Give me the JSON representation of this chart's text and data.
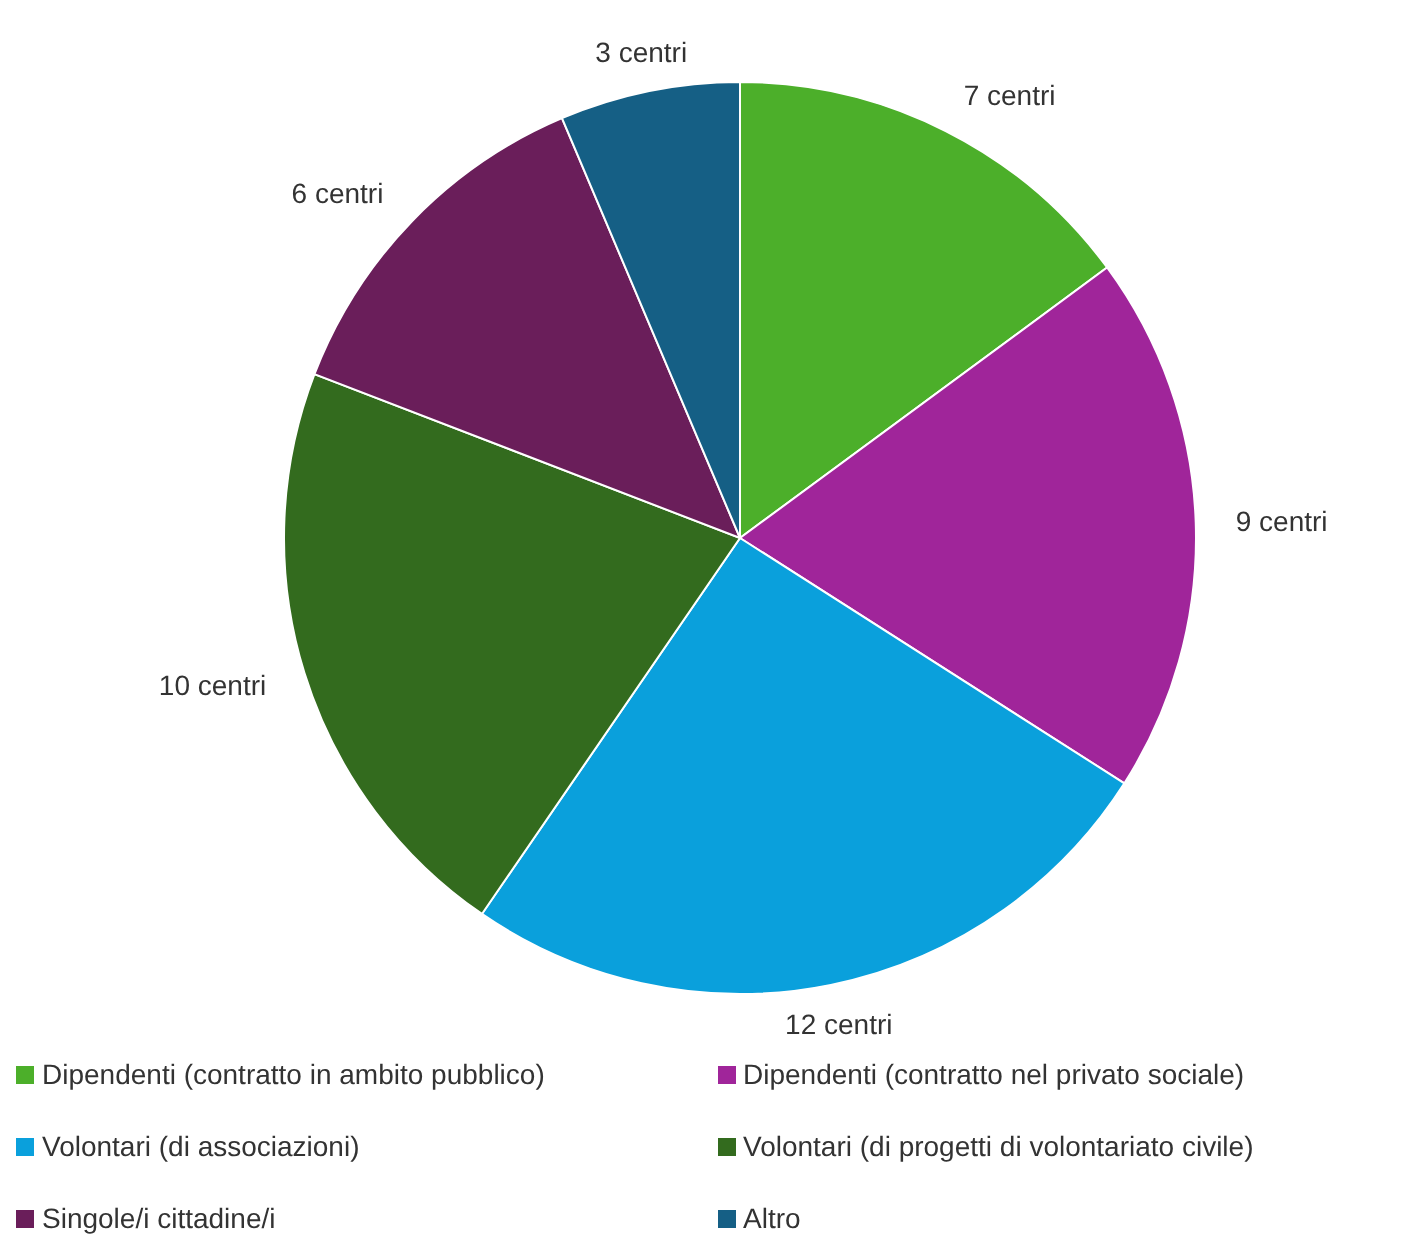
{
  "chart_data": {
    "type": "pie",
    "categories": [
      "Dipendenti (contratto in ambito pubblico)",
      "Dipendenti (contratto nel privato sociale)",
      "Volontari (di associazioni)",
      "Volontari (di progetti di volontariato civile)",
      "Singole/i cittadine/i",
      "Altro"
    ],
    "values": [
      7,
      9,
      12,
      10,
      6,
      3
    ],
    "value_labels": [
      "7 centri",
      "9 centri",
      "12 centri",
      "10 centri",
      "6 centri",
      "3 centri"
    ],
    "colors": [
      "#4caf2a",
      "#a0259a",
      "#0aa0dc",
      "#336b1e",
      "#6a1e5a",
      "#155f85"
    ],
    "legend": "bottom"
  }
}
